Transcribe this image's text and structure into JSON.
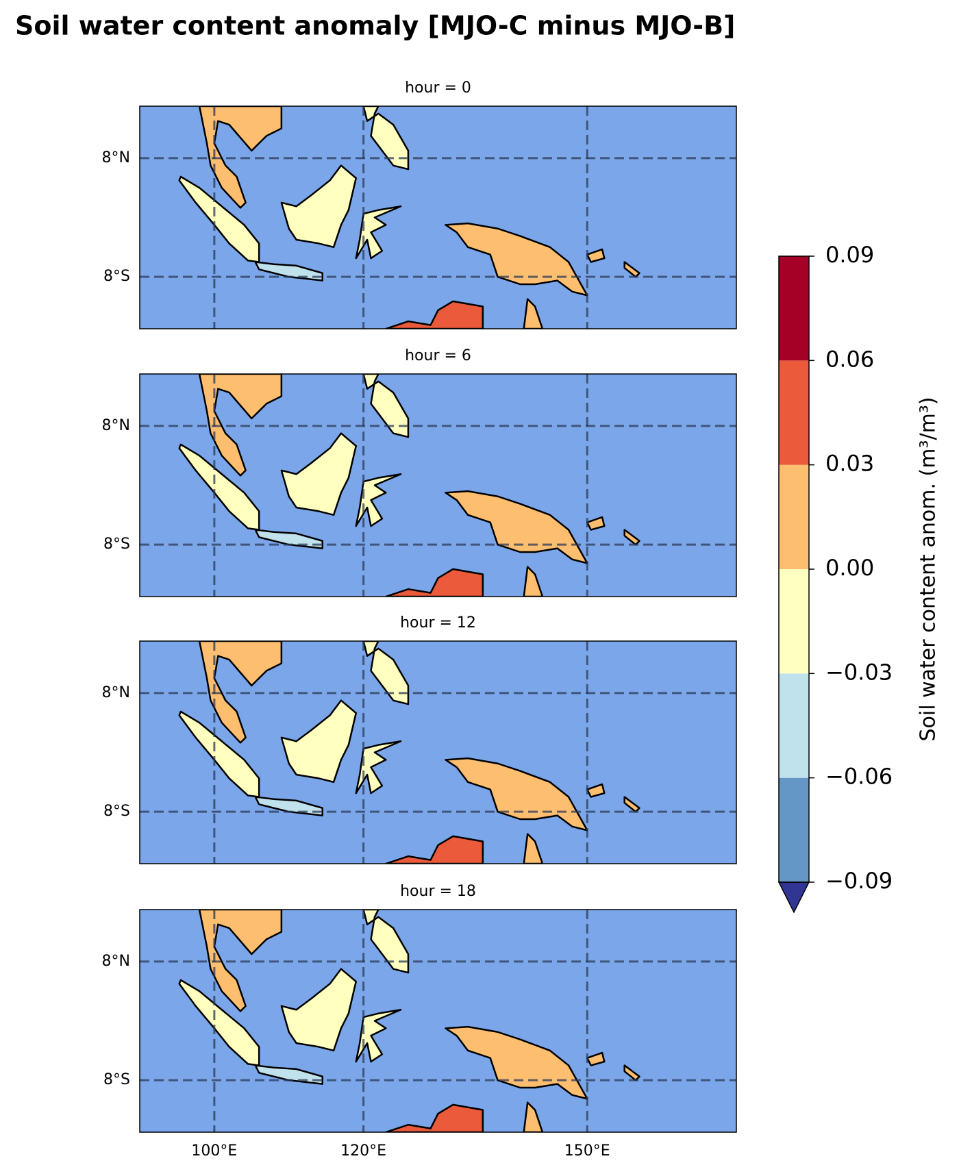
{
  "chart_data": {
    "type": "map",
    "title": "Soil water content anomaly [MJO-C minus MJO-B]",
    "panels": [
      {
        "title": "hour = 0"
      },
      {
        "title": "hour = 6"
      },
      {
        "title": "hour = 12"
      },
      {
        "title": "hour = 18"
      }
    ],
    "xlim": [
      90,
      170
    ],
    "ylim": [
      -15,
      15
    ],
    "xticks": [
      {
        "value": 100,
        "label": "100°E"
      },
      {
        "value": 120,
        "label": "120°E"
      },
      {
        "value": 150,
        "label": "150°E"
      }
    ],
    "yticks": [
      {
        "value": -8,
        "label": "8°S"
      },
      {
        "value": 8,
        "label": "8°N"
      }
    ],
    "grid": true,
    "ocean_color": "#7ba7ea",
    "colorbar": {
      "label": "Soil water content anom. (m³/m³)",
      "lim": [
        -0.09,
        0.09
      ],
      "ticks": [
        {
          "value": -0.09,
          "label": "−0.09"
        },
        {
          "value": -0.06,
          "label": "−0.06"
        },
        {
          "value": -0.03,
          "label": "−0.03"
        },
        {
          "value": 0,
          "label": "0.00"
        },
        0.03,
        0.06,
        0.09
      ],
      "colors": [
        "#6497c6",
        "#c0e2ec",
        "#ffffbf",
        "#fdbe6f",
        "#ea5a3b",
        "#a50026"
      ],
      "extend": "min",
      "extend_color": "#313695"
    }
  }
}
